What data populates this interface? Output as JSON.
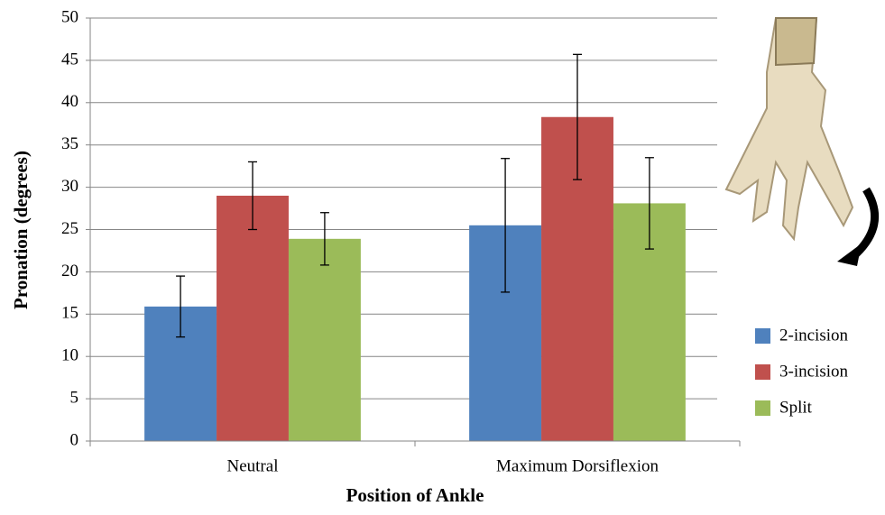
{
  "chart_data": {
    "type": "bar",
    "x_label": "Position of Ankle",
    "y_label": "Pronation (degrees)",
    "categories": [
      "Neutral",
      "Maximum Dorsiflexion"
    ],
    "series": [
      {
        "name": "2-incision",
        "color": "#4f81bd",
        "values": [
          15.9,
          25.5
        ],
        "errors": [
          3.6,
          7.9
        ]
      },
      {
        "name": "3-incision",
        "color": "#c0504d",
        "values": [
          29.0,
          38.3
        ],
        "errors": [
          4.0,
          7.4
        ]
      },
      {
        "name": "Split",
        "color": "#9bbb59",
        "values": [
          23.9,
          28.1
        ],
        "errors": [
          3.1,
          5.4
        ]
      }
    ],
    "ylim": [
      0,
      50
    ],
    "yticks": [
      0,
      5,
      10,
      15,
      20,
      25,
      30,
      35,
      40,
      45,
      50
    ],
    "grid": true,
    "legend": "right"
  }
}
